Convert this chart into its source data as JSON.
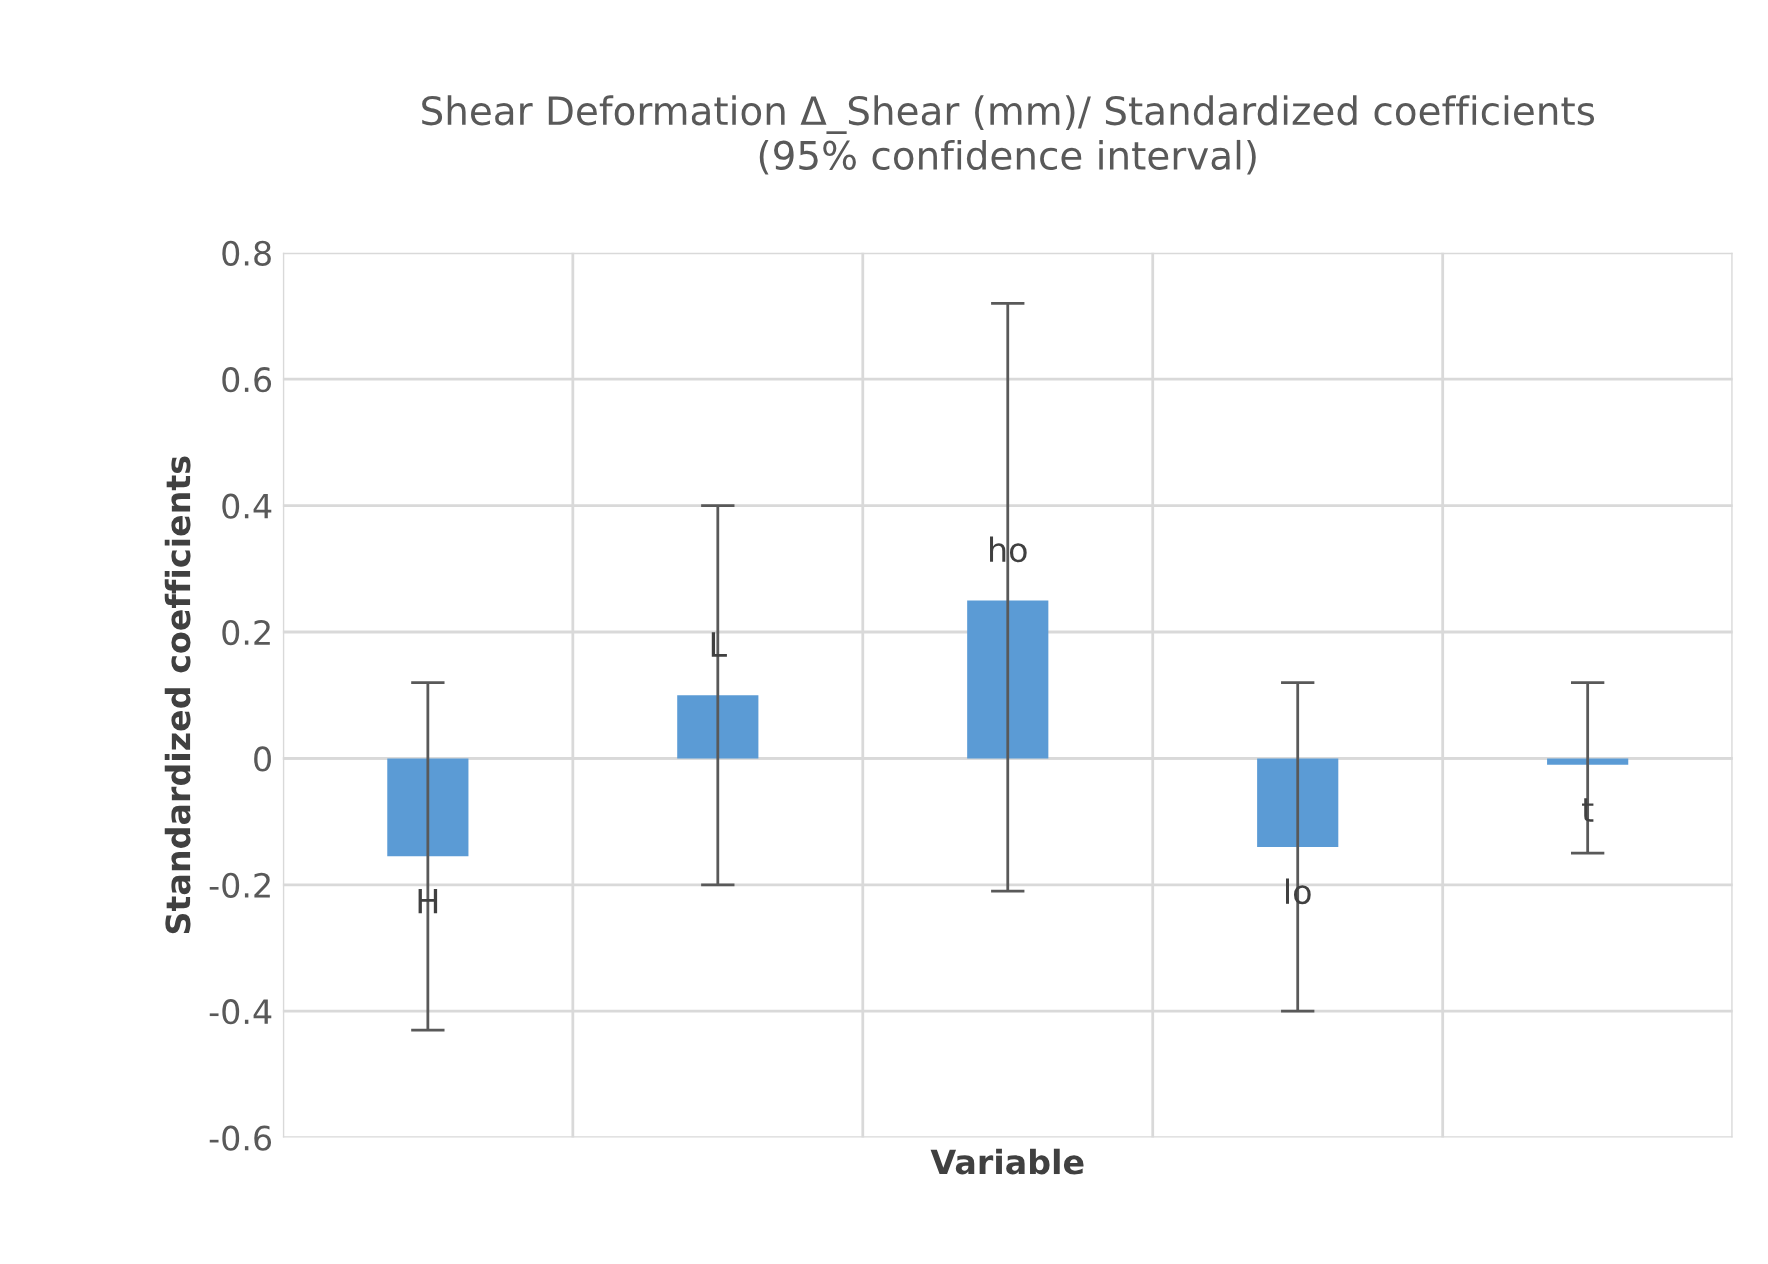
{
  "chart_data": {
    "type": "bar",
    "title": "Shear Deformation Δ_Shear (mm)/ Standardized coefficients\n(95% confidence interval)",
    "xlabel": "Variable",
    "ylabel": "Standardized coefficients",
    "categories": [
      "H",
      "L",
      "ho",
      "lo",
      "t"
    ],
    "values": [
      -0.155,
      0.1,
      0.25,
      -0.14,
      -0.01
    ],
    "errors": [
      [
        -0.43,
        0.12
      ],
      [
        -0.2,
        0.4
      ],
      [
        -0.21,
        0.72
      ],
      [
        -0.4,
        0.12
      ],
      [
        -0.15,
        0.12
      ]
    ],
    "color": "#5b9bd5",
    "ylim": [
      -0.6,
      0.8
    ],
    "yticks": [
      -0.6,
      -0.4,
      -0.2,
      0,
      0.2,
      0.4,
      0.6,
      0.8
    ],
    "grid": true
  }
}
